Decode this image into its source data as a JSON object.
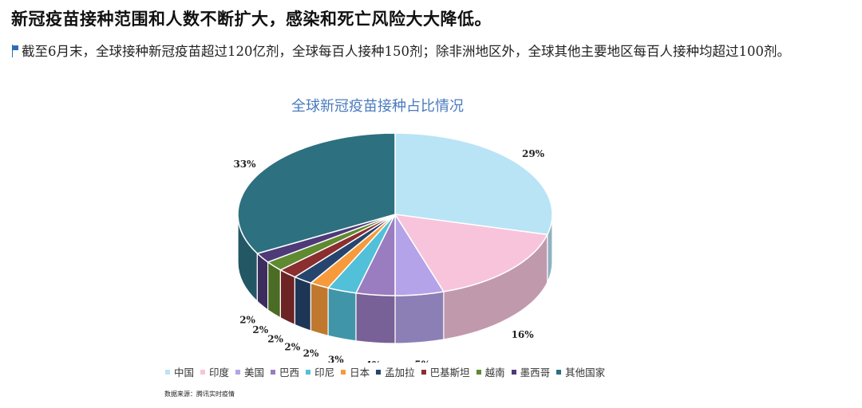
{
  "headline": "新冠疫苗接种范围和人数不断扩大，感染和死亡风险大大降低。",
  "summary": "截至6月末，全球接种新冠疫苗超过120亿剂，全球每百人接种150剂；除非洲地区外，全球其他主要地区每百人接种均超过100剂。",
  "source_note": "数据来源：腾讯实时疫情",
  "chart_data": {
    "type": "pie",
    "title": "全球新冠疫苗接种占比情况",
    "unit": "%",
    "three_d": true,
    "legend_position": "bottom",
    "slices": [
      {
        "name": "中国",
        "value": 29,
        "label": "29%",
        "color": "#b8e4f6"
      },
      {
        "name": "印度",
        "value": 16,
        "label": "16%",
        "color": "#f8c4dc"
      },
      {
        "name": "美国",
        "value": 5,
        "label": "5%",
        "color": "#b4a3e8"
      },
      {
        "name": "巴西",
        "value": 4,
        "label": "4%",
        "color": "#9a7cc0"
      },
      {
        "name": "印尼",
        "value": 3,
        "label": "3%",
        "color": "#52c0d8"
      },
      {
        "name": "日本",
        "value": 2,
        "label": "2%",
        "color": "#f69a3c"
      },
      {
        "name": "孟加拉",
        "value": 2,
        "label": "2%",
        "color": "#26456e"
      },
      {
        "name": "巴基斯坦",
        "value": 2,
        "label": "2%",
        "color": "#8a2e30"
      },
      {
        "name": "越南",
        "value": 2,
        "label": "2%",
        "color": "#5f8a30"
      },
      {
        "name": "墨西哥",
        "value": 2,
        "label": "2%",
        "color": "#4e3a78"
      },
      {
        "name": "其他国家",
        "value": 33,
        "label": "33%",
        "color": "#2d7080"
      }
    ],
    "title_color": "#4a7bbf"
  }
}
